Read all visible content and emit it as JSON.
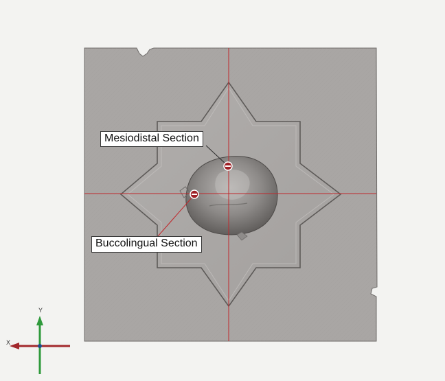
{
  "viewer": {
    "background_color": "#f3f3f1",
    "model_color": "#a9a6a4",
    "model_edge_color": "#6e6b69",
    "section_line_color": "#c0282c"
  },
  "model": {
    "base_plate": "square-base-plate",
    "mold_shape": "eight-point-star",
    "specimen": "tooth-crown"
  },
  "annotations": {
    "mesiodistal": {
      "label": "Mesiodistal Section",
      "marker_icon": "section-marker-icon"
    },
    "buccolingual": {
      "label": "Buccolingual Section",
      "marker_icon": "section-marker-icon"
    }
  },
  "axes": {
    "y_label": "Y",
    "x_label": "X",
    "y_color": "#2f9a3c",
    "x_color": "#a2282c"
  }
}
